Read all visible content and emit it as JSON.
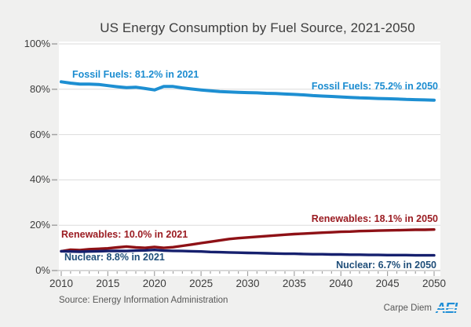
{
  "title": "US Energy Consumption by Fuel Source, 2021-2050",
  "source": "Source: Energy Information Administration",
  "branding": {
    "text": "Carpe Diem",
    "logo": "AEI",
    "logo_color": "#1f8ed6"
  },
  "colors": {
    "page_bg": "#f0f0ef",
    "plot_bg": "#ffffff",
    "gridline": "#dbdbdb",
    "axis_line": "#b0b0b0",
    "tick": "#a3a3a3",
    "tick_label": "#3d3d3d",
    "title_text": "#3d3d3d",
    "fossil_blue": "#1d8fd2",
    "renewables_red": "#8e1116",
    "nuclear_navy": "#16206e"
  },
  "chart_data": {
    "type": "line",
    "title": "US Energy Consumption by Fuel Source, 2021-2050",
    "x": [
      2010,
      2011,
      2012,
      2013,
      2014,
      2015,
      2016,
      2017,
      2018,
      2019,
      2020,
      2021,
      2022,
      2023,
      2024,
      2025,
      2026,
      2027,
      2028,
      2029,
      2030,
      2031,
      2032,
      2033,
      2034,
      2035,
      2036,
      2037,
      2038,
      2039,
      2040,
      2041,
      2042,
      2043,
      2044,
      2045,
      2046,
      2047,
      2048,
      2049,
      2050
    ],
    "series": [
      {
        "name": "Fossil Fuels",
        "color": "#1d8fd2",
        "stroke_width": 4,
        "values": [
          83.3,
          82.7,
          82.3,
          82.3,
          82.1,
          81.6,
          81.1,
          80.7,
          80.9,
          80.3,
          79.7,
          81.2,
          81.2,
          80.6,
          80.1,
          79.7,
          79.3,
          79.0,
          78.8,
          78.6,
          78.5,
          78.4,
          78.2,
          78.1,
          77.9,
          77.7,
          77.5,
          77.2,
          77.0,
          76.8,
          76.6,
          76.4,
          76.2,
          76.1,
          75.9,
          75.8,
          75.7,
          75.5,
          75.4,
          75.3,
          75.2
        ]
      },
      {
        "name": "Renewables",
        "color": "#8e1116",
        "stroke_width": 3.4,
        "values": [
          8.5,
          9.2,
          9.0,
          9.4,
          9.6,
          9.8,
          10.2,
          10.6,
          10.2,
          10.0,
          10.4,
          10.0,
          10.3,
          10.9,
          11.5,
          12.1,
          12.7,
          13.3,
          13.9,
          14.3,
          14.6,
          14.9,
          15.2,
          15.5,
          15.8,
          16.1,
          16.3,
          16.5,
          16.7,
          16.9,
          17.1,
          17.2,
          17.4,
          17.5,
          17.6,
          17.7,
          17.8,
          17.9,
          18.0,
          18.0,
          18.1
        ]
      },
      {
        "name": "Nuclear",
        "color": "#16206e",
        "stroke_width": 3.4,
        "values": [
          8.5,
          8.4,
          8.3,
          8.4,
          8.5,
          8.6,
          8.7,
          8.6,
          8.8,
          8.9,
          9.1,
          8.8,
          8.7,
          8.6,
          8.5,
          8.4,
          8.2,
          8.1,
          8.0,
          7.9,
          7.8,
          7.7,
          7.6,
          7.5,
          7.4,
          7.4,
          7.3,
          7.2,
          7.2,
          7.1,
          7.1,
          7.0,
          7.0,
          6.9,
          6.9,
          6.8,
          6.8,
          6.8,
          6.7,
          6.7,
          6.7
        ]
      }
    ],
    "annotations": [
      {
        "text": "Fossil Fuels: 81.2% in 2021",
        "color": "#1b8cd0"
      },
      {
        "text": "Fossil Fuels: 75.2% in 2050",
        "color": "#1b8cd0"
      },
      {
        "text": "Renewables: 10.0% in 2021",
        "color": "#9b1c22"
      },
      {
        "text": "Renewables: 18.1% in 2050",
        "color": "#9b1c22"
      },
      {
        "text": "Nuclear: 8.8% in 2021",
        "color": "#1f4e79"
      },
      {
        "text": "Nuclear: 6.7% in 2050",
        "color": "#1f4e79"
      }
    ],
    "ylim": [
      0,
      100
    ],
    "xlim": [
      2010,
      2050
    ],
    "yticks": [
      "0%",
      "20%",
      "40%",
      "60%",
      "80%",
      "100%"
    ],
    "ytick_values": [
      0,
      20,
      40,
      60,
      80,
      100
    ],
    "xticks": [
      2010,
      2015,
      2020,
      2025,
      2030,
      2035,
      2040,
      2045,
      2050
    ],
    "grid": true,
    "legend_position": "inline-annotations"
  }
}
